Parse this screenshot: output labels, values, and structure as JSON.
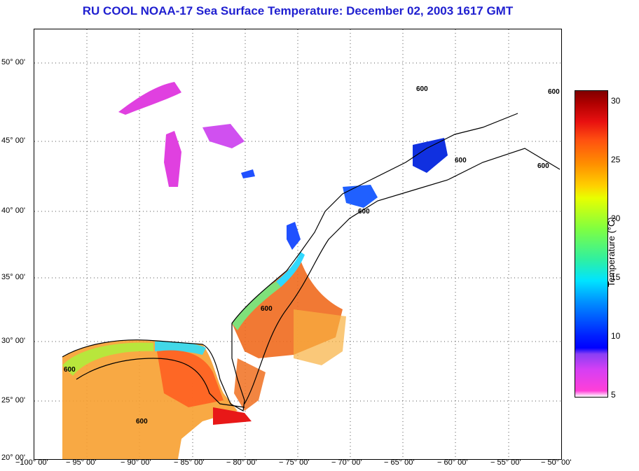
{
  "title": "RU COOL  NOAA-17  Sea Surface Temperature:  December 02, 2003 1617 GMT",
  "map": {
    "lon_range": [
      -100,
      -50
    ],
    "lat_range": [
      20,
      52
    ],
    "latitude_labels": [
      {
        "lat": 50,
        "text": "50° 00'"
      },
      {
        "lat": 45,
        "text": "45° 00'"
      },
      {
        "lat": 40,
        "text": "40° 00'"
      },
      {
        "lat": 35,
        "text": "35° 00'"
      },
      {
        "lat": 30,
        "text": "30° 00'"
      },
      {
        "lat": 25,
        "text": "25° 00'"
      },
      {
        "lat": 20,
        "text": "20° 00'"
      }
    ],
    "longitude_labels": [
      {
        "lon": -100,
        "text": "−100° 00'"
      },
      {
        "lon": -95,
        "text": "− 95° 00'"
      },
      {
        "lon": -90,
        "text": "− 90° 00'"
      },
      {
        "lon": -85,
        "text": "− 85° 00'"
      },
      {
        "lon": -80,
        "text": "− 80° 00'"
      },
      {
        "lon": -75,
        "text": "− 75° 00'"
      },
      {
        "lon": -70,
        "text": "− 70° 00'"
      },
      {
        "lon": -65,
        "text": "− 65° 00'"
      },
      {
        "lon": -60,
        "text": "− 60° 00'"
      },
      {
        "lon": -55,
        "text": "− 55° 00'"
      },
      {
        "lon": -50,
        "text": "− 50° 00'"
      }
    ],
    "isobath_label": "600"
  },
  "colorbar": {
    "label": "Temperature (°C)",
    "ticks": [
      "30",
      "25",
      "20",
      "15",
      "10",
      "5"
    ],
    "range": [
      5,
      31
    ]
  }
}
